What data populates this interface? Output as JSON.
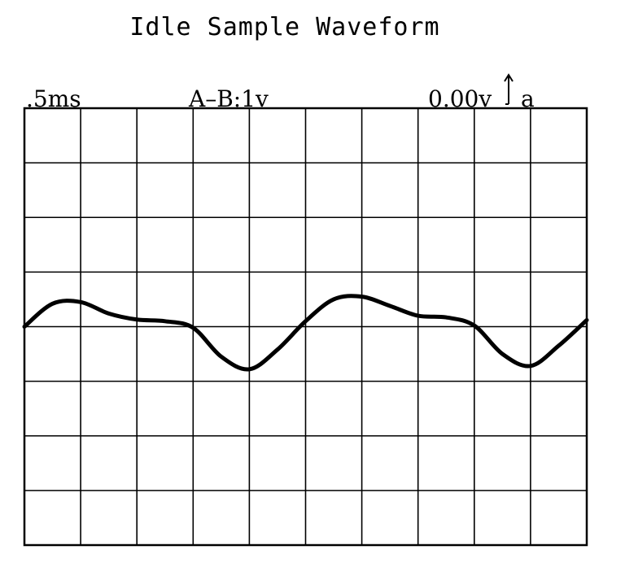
{
  "chart_data": {
    "type": "line",
    "title": "Idle Sample Waveform",
    "timebase_label": ".5ms",
    "channel_label": "A–B:1v",
    "trigger_readout": "0.00v",
    "trigger_channel": "a",
    "grid": true,
    "grid_divisions": {
      "x": 10,
      "y": 8
    },
    "xlim": [
      0,
      10
    ],
    "ylim": [
      -4,
      4
    ],
    "series": [
      {
        "x": [
          0,
          0.5,
          1.0,
          1.5,
          2.0,
          2.5,
          3.0,
          3.5,
          4.0,
          4.5,
          5.0,
          5.5,
          6.0,
          6.5,
          7.0,
          7.5,
          8.0,
          8.5,
          9.0,
          9.5,
          10.0
        ],
        "values": [
          0,
          0.42,
          0.45,
          0.24,
          0.13,
          0.1,
          -0.02,
          -0.55,
          -0.78,
          -0.42,
          0.1,
          0.5,
          0.55,
          0.38,
          0.2,
          0.17,
          0.02,
          -0.5,
          -0.72,
          -0.35,
          0.12
        ]
      }
    ],
    "colors": {
      "trace": "#000000",
      "grid": "#000000",
      "background": "#ffffff"
    }
  }
}
